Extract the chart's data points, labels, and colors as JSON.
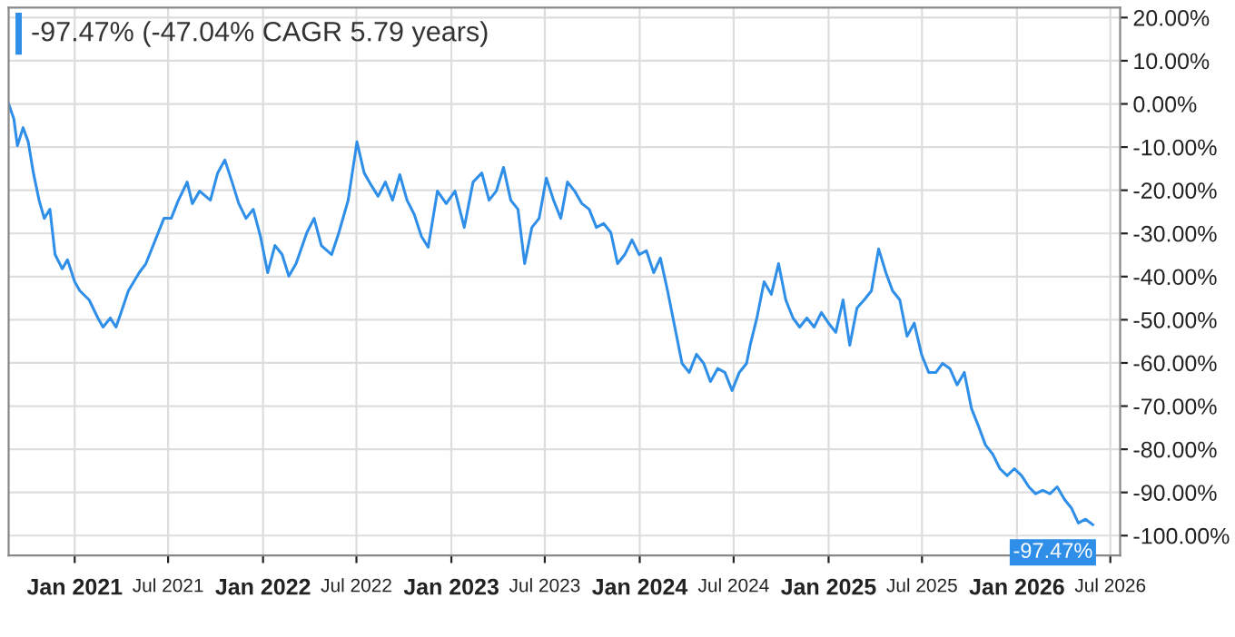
{
  "chart_data": {
    "type": "line",
    "title": "-97.47% (-47.04% CAGR 5.79 years)",
    "x": [
      "2020-08-26",
      "2020-09-05",
      "2020-09-12",
      "2020-09-23",
      "2020-10-03",
      "2020-10-13",
      "2020-10-24",
      "2020-11-03",
      "2020-11-14",
      "2020-11-24",
      "2020-12-08",
      "2020-12-18",
      "2021-01-01",
      "2021-01-11",
      "2021-01-29",
      "2021-02-15",
      "2021-02-25",
      "2021-03-11",
      "2021-03-22",
      "2021-04-01",
      "2021-04-15",
      "2021-05-06",
      "2021-05-19",
      "2021-06-09",
      "2021-06-23",
      "2021-07-07",
      "2021-07-21",
      "2021-08-07",
      "2021-08-17",
      "2021-08-31",
      "2021-09-21",
      "2021-10-05",
      "2021-10-19",
      "2021-11-02",
      "2021-11-15",
      "2021-11-29",
      "2021-12-13",
      "2021-12-27",
      "2022-01-10",
      "2022-01-24",
      "2022-02-07",
      "2022-02-20",
      "2022-03-06",
      "2022-03-27",
      "2022-04-10",
      "2022-04-24",
      "2022-05-14",
      "2022-05-28",
      "2022-06-15",
      "2022-07-02",
      "2022-07-16",
      "2022-07-30",
      "2022-08-12",
      "2022-08-26",
      "2022-09-09",
      "2022-09-23",
      "2022-10-07",
      "2022-10-21",
      "2022-11-04",
      "2022-11-17",
      "2022-12-05",
      "2022-12-22",
      "2023-01-08",
      "2023-01-26",
      "2023-02-12",
      "2023-03-01",
      "2023-03-15",
      "2023-03-29",
      "2023-04-12",
      "2023-04-26",
      "2023-05-10",
      "2023-05-23",
      "2023-06-06",
      "2023-06-20",
      "2023-07-04",
      "2023-07-18",
      "2023-08-01",
      "2023-08-14",
      "2023-08-28",
      "2023-09-11",
      "2023-09-25",
      "2023-10-09",
      "2023-10-23",
      "2023-11-06",
      "2023-11-19",
      "2023-12-03",
      "2023-12-17",
      "2023-12-31",
      "2024-01-14",
      "2024-01-28",
      "2024-02-10",
      "2024-02-24",
      "2024-03-09",
      "2024-03-23",
      "2024-04-06",
      "2024-04-20",
      "2024-05-04",
      "2024-05-17",
      "2024-05-31",
      "2024-06-14",
      "2024-06-28",
      "2024-07-12",
      "2024-07-26",
      "2024-08-02",
      "2024-08-15",
      "2024-08-29",
      "2024-09-12",
      "2024-09-26",
      "2024-10-10",
      "2024-10-24",
      "2024-11-06",
      "2024-11-20",
      "2024-12-04",
      "2024-12-18",
      "2025-01-01",
      "2025-01-15",
      "2025-01-29",
      "2025-02-11",
      "2025-02-25",
      "2025-03-11",
      "2025-03-25",
      "2025-04-08",
      "2025-04-22",
      "2025-05-05",
      "2025-05-19",
      "2025-06-02",
      "2025-06-16",
      "2025-06-30",
      "2025-07-14",
      "2025-07-28",
      "2025-08-10",
      "2025-08-24",
      "2025-09-07",
      "2025-09-21",
      "2025-10-05",
      "2025-10-19",
      "2025-11-01",
      "2025-11-15",
      "2025-11-29",
      "2025-12-13",
      "2025-12-27",
      "2026-01-10",
      "2026-01-24",
      "2026-02-06",
      "2026-02-20",
      "2026-03-06",
      "2026-03-20",
      "2026-04-03",
      "2026-04-17",
      "2026-04-30",
      "2026-05-14",
      "2026-05-28"
    ],
    "series": [
      {
        "color": "#2f8fe8",
        "values": [
          0,
          -3.4,
          -9.7,
          -5.5,
          -8.8,
          -16.0,
          -22.3,
          -26.5,
          -24.4,
          -34.9,
          -38.2,
          -36.1,
          -41.2,
          -43.3,
          -45.4,
          -49.6,
          -51.7,
          -49.6,
          -51.7,
          -48.3,
          -43.3,
          -39.1,
          -37.0,
          -30.7,
          -26.5,
          -26.5,
          -22.3,
          -18.1,
          -23.1,
          -20.2,
          -22.3,
          -16.0,
          -13.0,
          -18.1,
          -23.1,
          -26.5,
          -24.4,
          -30.7,
          -39.1,
          -32.8,
          -34.9,
          -39.9,
          -37.0,
          -29.8,
          -26.5,
          -32.8,
          -34.9,
          -29.8,
          -22.3,
          -8.8,
          -16.0,
          -18.9,
          -21.4,
          -18.1,
          -22.3,
          -16.4,
          -22.3,
          -25.6,
          -30.7,
          -33.2,
          -20.2,
          -23.1,
          -20.2,
          -28.6,
          -18.1,
          -16.0,
          -22.3,
          -20.2,
          -14.7,
          -22.3,
          -24.4,
          -37.0,
          -28.6,
          -26.5,
          -17.2,
          -22.3,
          -26.5,
          -18.1,
          -20.2,
          -23.1,
          -24.4,
          -28.6,
          -27.7,
          -29.8,
          -37.0,
          -34.9,
          -31.5,
          -34.9,
          -34.0,
          -39.1,
          -35.7,
          -43.3,
          -51.7,
          -60.1,
          -62.2,
          -58.0,
          -60.1,
          -64.3,
          -61.3,
          -62.2,
          -66.4,
          -62.2,
          -60.1,
          -55.9,
          -49.6,
          -41.2,
          -44.1,
          -37.0,
          -45.4,
          -49.6,
          -51.7,
          -49.6,
          -51.7,
          -48.3,
          -50.8,
          -52.9,
          -45.4,
          -55.9,
          -47.3,
          -45.4,
          -43.3,
          -33.6,
          -39.1,
          -43.3,
          -45.4,
          -53.8,
          -50.8,
          -58.0,
          -62.2,
          -62.2,
          -60.1,
          -61.3,
          -65.1,
          -62.2,
          -70.6,
          -74.8,
          -79.0,
          -81.1,
          -84.5,
          -86.1,
          -84.5,
          -86.1,
          -88.7,
          -90.3,
          -89.5,
          -90.3,
          -88.7,
          -91.6,
          -93.7,
          -97.1,
          -96.2,
          -97.47
        ]
      }
    ],
    "xlim": [
      "2020-08-26",
      "2026-07-20"
    ],
    "xticks": [
      {
        "value": "2021-01-01",
        "label": "Jan 2021"
      },
      {
        "value": "2021-07-01",
        "label": "Jul 2021"
      },
      {
        "value": "2022-01-01",
        "label": "Jan 2022"
      },
      {
        "value": "2022-07-01",
        "label": "Jul 2022"
      },
      {
        "value": "2023-01-01",
        "label": "Jan 2023"
      },
      {
        "value": "2023-07-01",
        "label": "Jul 2023"
      },
      {
        "value": "2024-01-01",
        "label": "Jan 2024"
      },
      {
        "value": "2024-07-01",
        "label": "Jul 2024"
      },
      {
        "value": "2025-01-01",
        "label": "Jan 2025"
      },
      {
        "value": "2025-07-01",
        "label": "Jul 2025"
      },
      {
        "value": "2026-01-01",
        "label": "Jan 2026"
      },
      {
        "value": "2026-07-01",
        "label": "Jul 2026"
      }
    ],
    "ylim": [
      -104.6,
      22.3
    ],
    "yticks": [
      {
        "value": 20,
        "label": "20.00%"
      },
      {
        "value": 10,
        "label": "10.00%"
      },
      {
        "value": 0,
        "label": "0.00%"
      },
      {
        "value": -10,
        "label": "-10.00%"
      },
      {
        "value": -20,
        "label": "-20.00%"
      },
      {
        "value": -30,
        "label": "-30.00%"
      },
      {
        "value": -40,
        "label": "-40.00%"
      },
      {
        "value": -50,
        "label": "-50.00%"
      },
      {
        "value": -60,
        "label": "-60.00%"
      },
      {
        "value": -70,
        "label": "-70.00%"
      },
      {
        "value": -80,
        "label": "-80.00%"
      },
      {
        "value": -90,
        "label": "-90.00%"
      },
      {
        "value": -100,
        "label": "-100.00%"
      }
    ],
    "annotations": [
      {
        "text": "-97.47%",
        "x": "2026-05-28",
        "y": -97.47
      }
    ],
    "grid": true,
    "legend": false,
    "marker": "none",
    "line_style": "solid"
  }
}
